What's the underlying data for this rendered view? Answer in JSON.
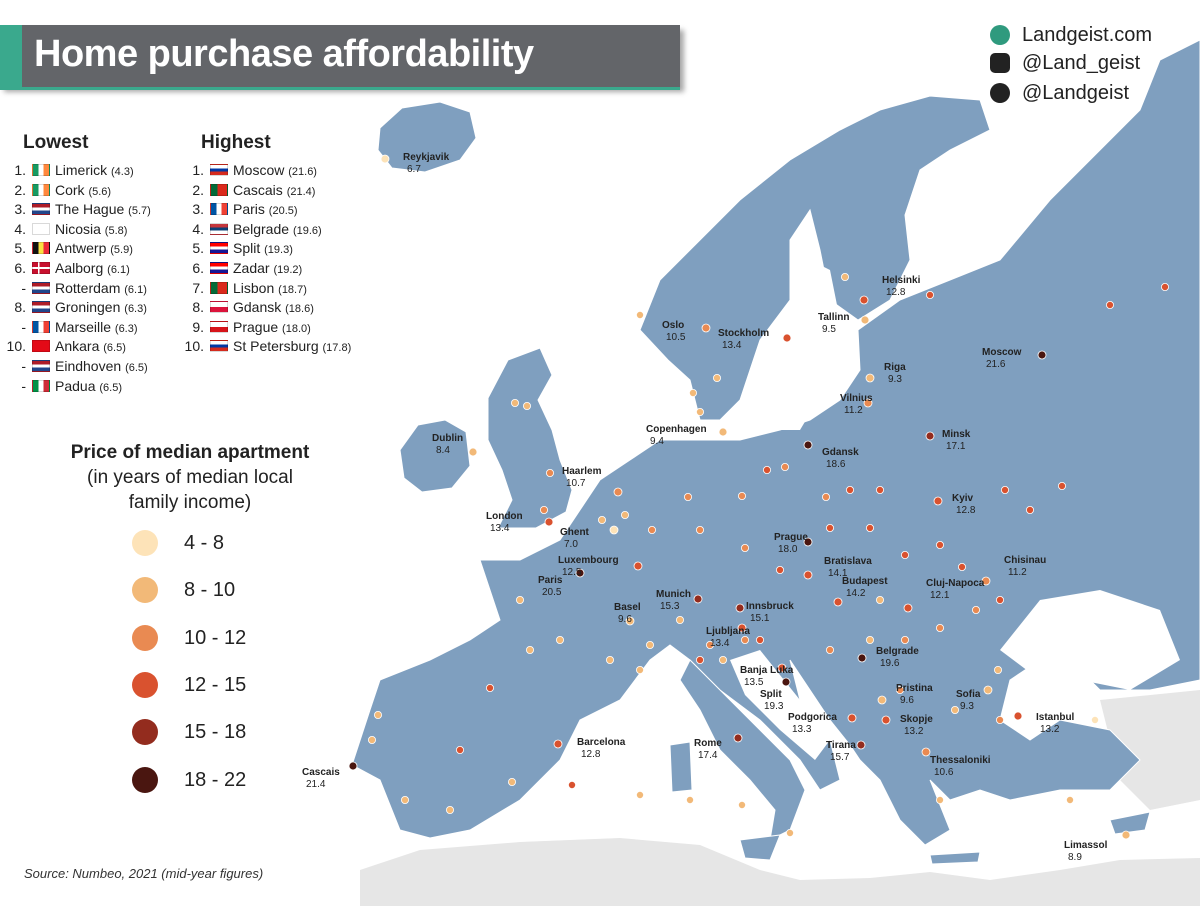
{
  "header": {
    "title": "Home purchase affordability",
    "social": [
      {
        "icon": "globe-icon",
        "text": "Landgeist.com"
      },
      {
        "icon": "instagram-icon",
        "text": "@Land_geist"
      },
      {
        "icon": "twitter-icon",
        "text": "@Landgeist"
      }
    ]
  },
  "lowest": {
    "title": "Lowest",
    "rows": [
      {
        "rank": "1.",
        "city": "Limerick",
        "value": "(4.3)",
        "flag": "ireland"
      },
      {
        "rank": "2.",
        "city": "Cork",
        "value": "(5.6)",
        "flag": "ireland"
      },
      {
        "rank": "3.",
        "city": "The Hague",
        "value": "(5.7)",
        "flag": "netherlands"
      },
      {
        "rank": "4.",
        "city": "Nicosia",
        "value": "(5.8)",
        "flag": "cyprus"
      },
      {
        "rank": "5.",
        "city": "Antwerp",
        "value": "(5.9)",
        "flag": "belgium"
      },
      {
        "rank": "6.",
        "city": "Aalborg",
        "value": "(6.1)",
        "flag": "denmark"
      },
      {
        "rank": "-",
        "city": "Rotterdam",
        "value": "(6.1)",
        "flag": "netherlands"
      },
      {
        "rank": "8.",
        "city": "Groningen",
        "value": "(6.3)",
        "flag": "netherlands"
      },
      {
        "rank": "-",
        "city": "Marseille",
        "value": "(6.3)",
        "flag": "france"
      },
      {
        "rank": "10.",
        "city": "Ankara",
        "value": "(6.5)",
        "flag": "turkey"
      },
      {
        "rank": "-",
        "city": "Eindhoven",
        "value": "(6.5)",
        "flag": "netherlands"
      },
      {
        "rank": "-",
        "city": "Padua",
        "value": "(6.5)",
        "flag": "italy"
      }
    ]
  },
  "highest": {
    "title": "Highest",
    "rows": [
      {
        "rank": "1.",
        "city": "Moscow",
        "value": "(21.6)",
        "flag": "russia"
      },
      {
        "rank": "2.",
        "city": "Cascais",
        "value": "(21.4)",
        "flag": "portugal"
      },
      {
        "rank": "3.",
        "city": "Paris",
        "value": "(20.5)",
        "flag": "france"
      },
      {
        "rank": "4.",
        "city": "Belgrade",
        "value": "(19.6)",
        "flag": "serbia"
      },
      {
        "rank": "5.",
        "city": "Split",
        "value": "(19.3)",
        "flag": "croatia"
      },
      {
        "rank": "6.",
        "city": "Zadar",
        "value": "(19.2)",
        "flag": "croatia"
      },
      {
        "rank": "7.",
        "city": "Lisbon",
        "value": "(18.7)",
        "flag": "portugal"
      },
      {
        "rank": "8.",
        "city": "Gdansk",
        "value": "(18.6)",
        "flag": "poland"
      },
      {
        "rank": "9.",
        "city": "Prague",
        "value": "(18.0)",
        "flag": "czech"
      },
      {
        "rank": "10.",
        "city": "St Petersburg",
        "value": "(17.8)",
        "flag": "russia"
      }
    ]
  },
  "legend": {
    "title": "Price of median apartment",
    "subtitle_lines": [
      "(in years of median local",
      "family income)"
    ],
    "bins": [
      {
        "label": "4  -  8",
        "color": "#fde3b8"
      },
      {
        "label": "8  -  10",
        "color": "#f2b978"
      },
      {
        "label": "10  -  12",
        "color": "#e98a52"
      },
      {
        "label": "12  -  15",
        "color": "#d9522f"
      },
      {
        "label": "15  -  18",
        "color": "#932c1e"
      },
      {
        "label": "18  -  22",
        "color": "#4a1610"
      }
    ]
  },
  "source": "Source: Numbeo, 2021 (mid-year figures)",
  "colors": {
    "land": "#7f9fbf",
    "sea": "#ffffff",
    "other_land": "#e6e6e6",
    "accent": "#3aa98d",
    "title_bg": "#636569"
  },
  "labeled_cities": [
    {
      "name": "Reykjavik",
      "value": "6.7"
    },
    {
      "name": "Helsinki",
      "value": "12.8"
    },
    {
      "name": "Oslo",
      "value": "10.5"
    },
    {
      "name": "Stockholm",
      "value": "13.4"
    },
    {
      "name": "Tallinn",
      "value": "9.5"
    },
    {
      "name": "Moscow",
      "value": "21.6"
    },
    {
      "name": "Riga",
      "value": "9.3"
    },
    {
      "name": "Vilnius",
      "value": "11.2"
    },
    {
      "name": "Minsk",
      "value": "17.1"
    },
    {
      "name": "Copenhagen",
      "value": "9.4"
    },
    {
      "name": "Dublin",
      "value": "8.4"
    },
    {
      "name": "Gdansk",
      "value": "18.6"
    },
    {
      "name": "Haarlem",
      "value": "10.7"
    },
    {
      "name": "London",
      "value": "13.4"
    },
    {
      "name": "Kyiv",
      "value": "12.8"
    },
    {
      "name": "Ghent",
      "value": "7.0"
    },
    {
      "name": "Prague",
      "value": "18.0"
    },
    {
      "name": "Luxembourg",
      "value": "12.5"
    },
    {
      "name": "Bratislava",
      "value": "14.1"
    },
    {
      "name": "Chisinau",
      "value": "11.2"
    },
    {
      "name": "Paris",
      "value": "20.5"
    },
    {
      "name": "Budapest",
      "value": "14.2"
    },
    {
      "name": "Cluj-Napoca",
      "value": "12.1"
    },
    {
      "name": "Munich",
      "value": "15.3"
    },
    {
      "name": "Basel",
      "value": "9.6"
    },
    {
      "name": "Innsbruck",
      "value": "15.1"
    },
    {
      "name": "Ljubljana",
      "value": "13.4"
    },
    {
      "name": "Belgrade",
      "value": "19.6"
    },
    {
      "name": "Banja Luka",
      "value": "13.5"
    },
    {
      "name": "Split",
      "value": "19.3"
    },
    {
      "name": "Pristina",
      "value": "9.6"
    },
    {
      "name": "Sofia",
      "value": "9.3"
    },
    {
      "name": "Podgorica",
      "value": "13.3"
    },
    {
      "name": "Skopje",
      "value": "13.2"
    },
    {
      "name": "Istanbul",
      "value": "13.2"
    },
    {
      "name": "Barcelona",
      "value": "12.8"
    },
    {
      "name": "Rome",
      "value": "17.4"
    },
    {
      "name": "Tirana",
      "value": "15.7"
    },
    {
      "name": "Thessaloniki",
      "value": "10.6"
    },
    {
      "name": "Cascais",
      "value": "21.4"
    },
    {
      "name": "Limassol",
      "value": "8.9"
    }
  ]
}
